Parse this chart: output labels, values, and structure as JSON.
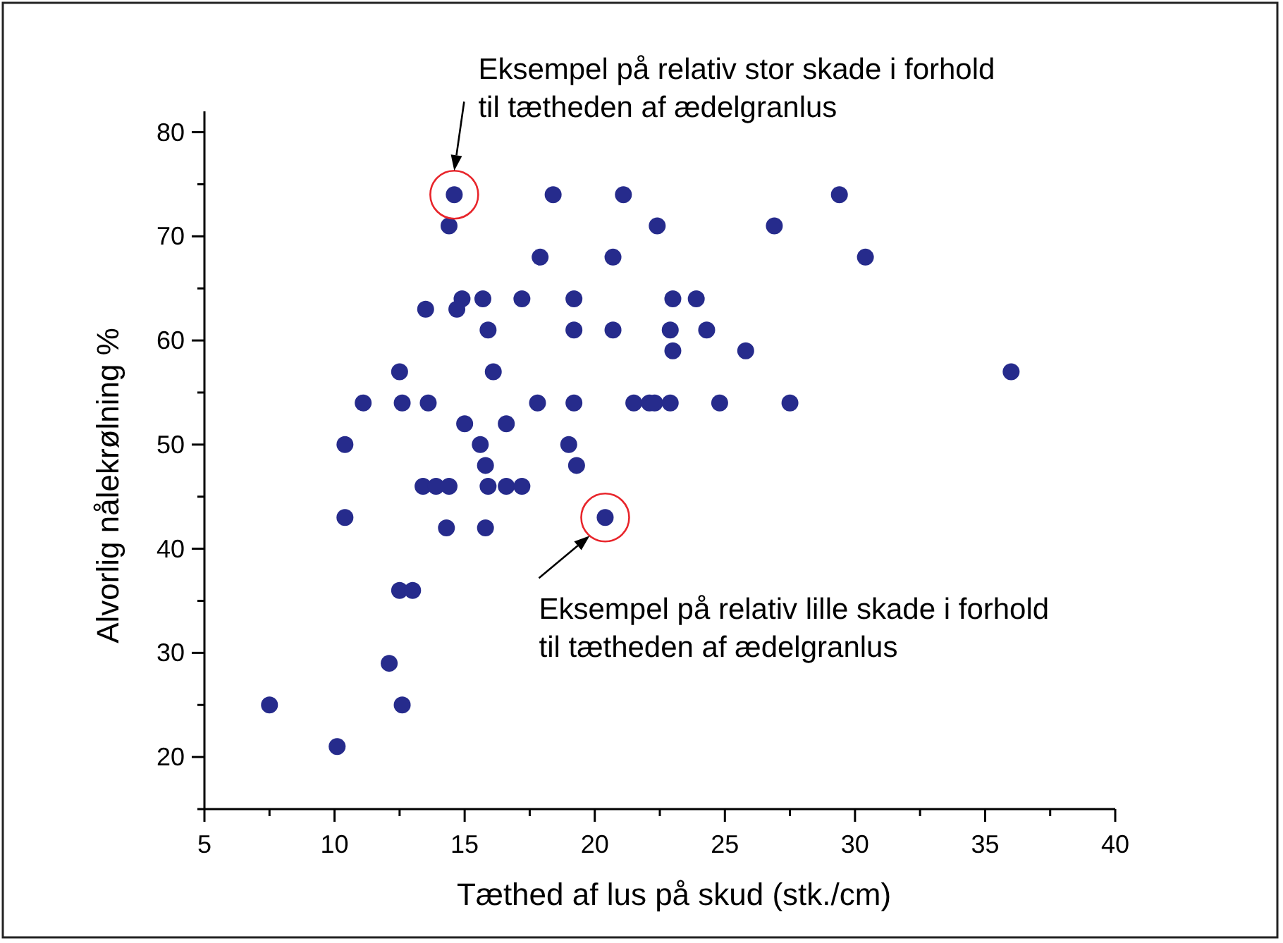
{
  "chart_data": {
    "type": "scatter",
    "xlabel": "Tæthed af lus på skud (stk./cm)",
    "ylabel": "Alvorlig nålekrølning %",
    "xlim": [
      5,
      40
    ],
    "ylim": [
      15,
      82
    ],
    "xticks": [
      5,
      {
        "value": 7.5,
        "label": null
      },
      10,
      {
        "value": 12.5,
        "label": null
      },
      15,
      {
        "value": 17.5,
        "label": null
      },
      20,
      {
        "value": 22.5,
        "label": null
      },
      25,
      {
        "value": 27.5,
        "label": null
      },
      30,
      {
        "value": 32.5,
        "label": null
      },
      35,
      {
        "value": 37.5,
        "label": null
      },
      40
    ],
    "yticks": [
      {
        "value": 15,
        "label": null
      },
      20,
      {
        "value": 25,
        "label": null
      },
      30,
      {
        "value": 35,
        "label": null
      },
      40,
      {
        "value": 45,
        "label": null
      },
      50,
      {
        "value": 55,
        "label": null
      },
      60,
      {
        "value": 65,
        "label": null
      },
      70,
      {
        "value": 75,
        "label": null
      },
      80
    ],
    "grid": false,
    "marker": "circle",
    "series": [
      {
        "color": "#262b8c",
        "x": [
          7.5,
          10.1,
          10.4,
          10.4,
          11.1,
          12.5,
          12.6,
          13.6,
          14.6,
          14.4,
          13.5,
          14.9,
          14.7,
          15.7,
          17.2,
          15.9,
          16.1,
          15.0,
          16.6,
          15.6,
          15.8,
          13.4,
          13.9,
          14.4,
          15.9,
          16.6,
          17.2,
          14.3,
          15.8,
          12.5,
          13.0,
          12.1,
          12.6,
          18.4,
          21.1,
          29.4,
          22.4,
          26.9,
          17.9,
          20.7,
          30.4,
          19.2,
          23.0,
          23.9,
          19.2,
          20.7,
          22.9,
          24.3,
          23.0,
          25.8,
          36.0,
          17.8,
          19.2,
          21.5,
          22.1,
          22.3,
          22.9,
          24.8,
          27.5,
          19.0,
          19.3,
          20.4
        ],
        "values": [
          25,
          21,
          50,
          43,
          54,
          57,
          54,
          54,
          74,
          71,
          63,
          64,
          63,
          64,
          64,
          61,
          57,
          52,
          52,
          50,
          48,
          46,
          46,
          46,
          46,
          46,
          46,
          42,
          42,
          36,
          36,
          29,
          25,
          74,
          74,
          74,
          71,
          71,
          68,
          68,
          68,
          64,
          64,
          64,
          61,
          61,
          61,
          61,
          59,
          59,
          57,
          54,
          54,
          54,
          54,
          54,
          54,
          54,
          54,
          50,
          48,
          43
        ]
      }
    ],
    "annotations": [
      {
        "text": "Eksempel på relativ stor skade i forhold\ntil tætheden af ædelgranlus",
        "x": 14.6,
        "y": 74
      },
      {
        "text": "Eksempel på relativ lille skade i forhold\ntil tætheden af ædelgranlus",
        "x": 20.4,
        "y": 43
      }
    ]
  }
}
